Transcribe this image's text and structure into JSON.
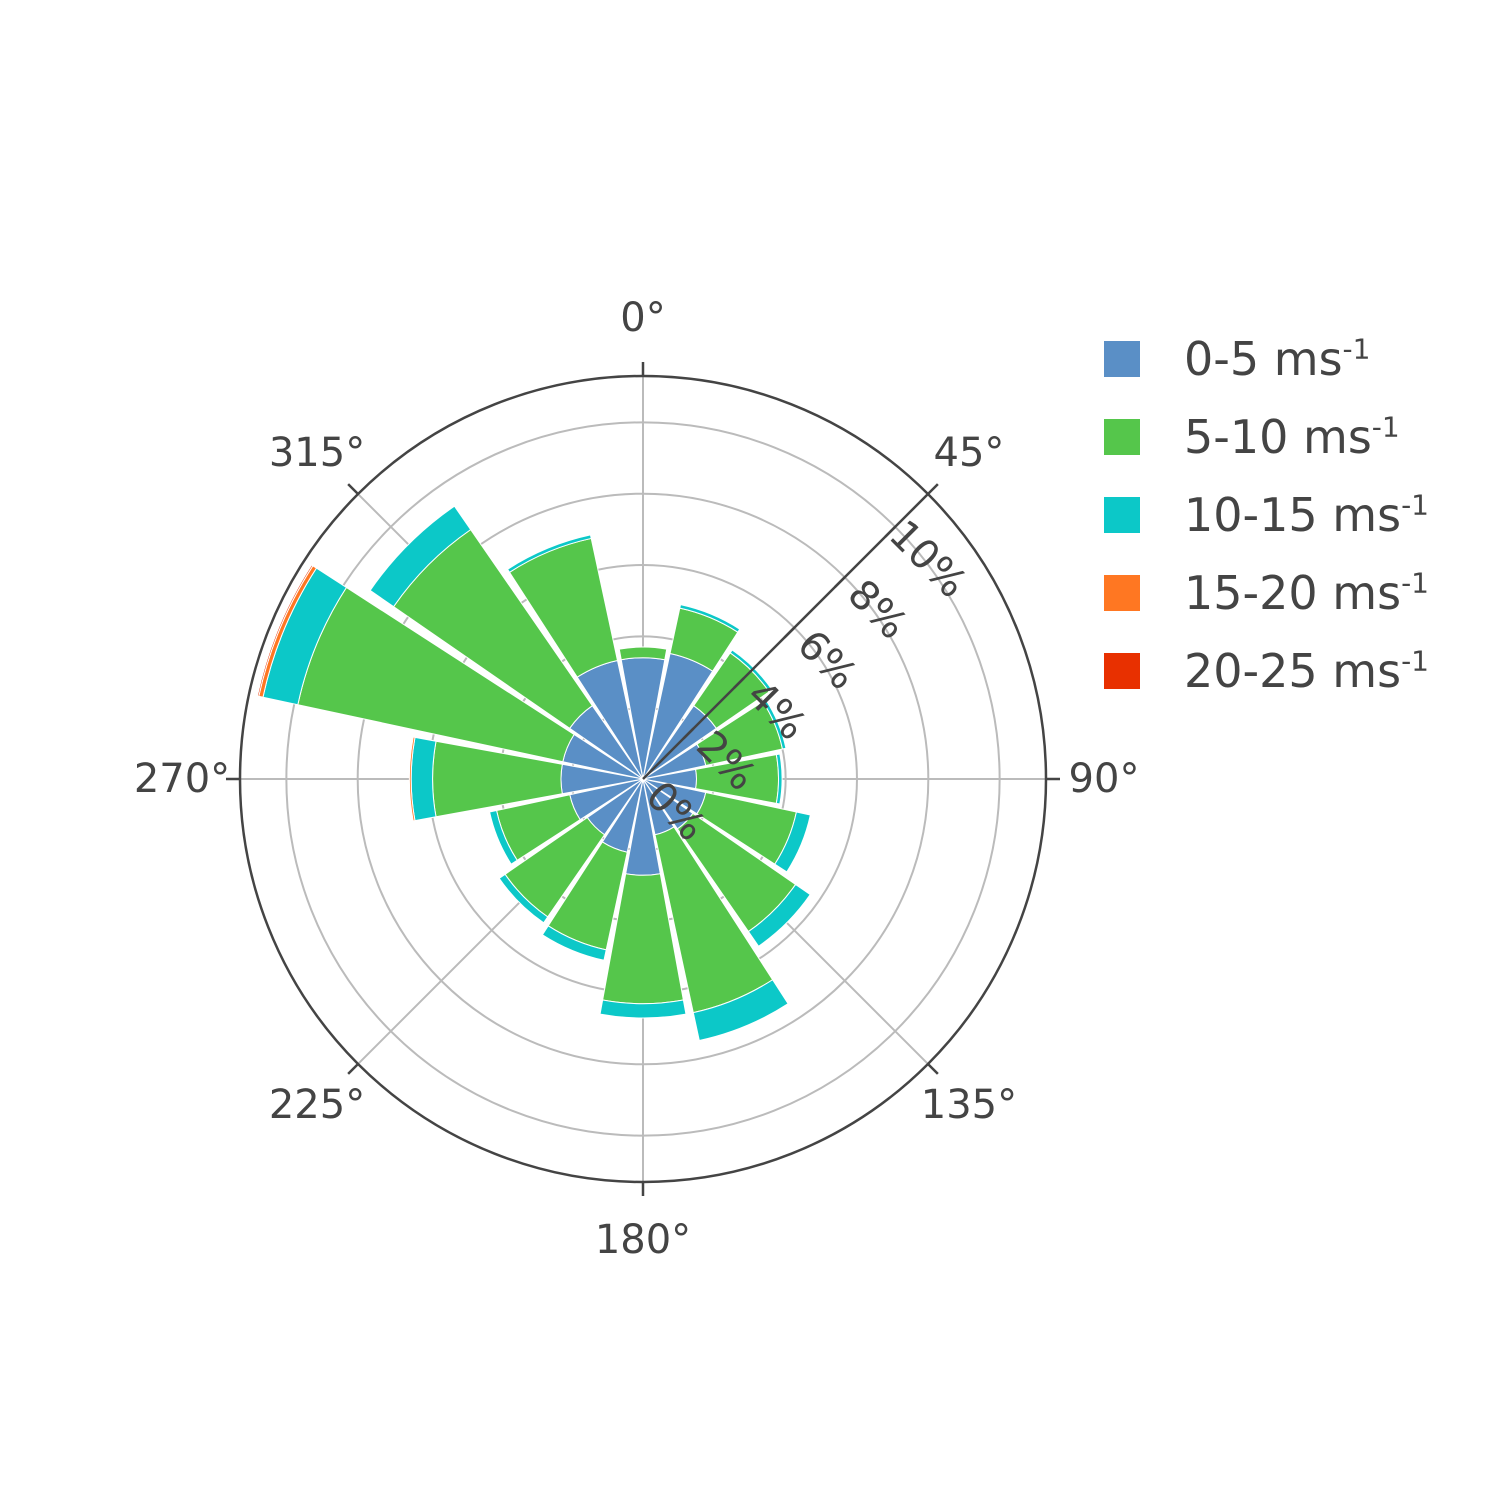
{
  "chart_data": {
    "type": "barpolar",
    "angular_axis": {
      "direction": "clockwise",
      "rotation": "north",
      "tick_labels": [
        "0°",
        "45°",
        "90°",
        "135°",
        "180°",
        "225°",
        "270°",
        "315°"
      ]
    },
    "radial_axis": {
      "range": [
        0,
        11.3
      ],
      "tick_values": [
        0,
        2,
        4,
        6,
        8,
        10
      ],
      "tick_labels": [
        "0%",
        "2%",
        "4%",
        "6%",
        "8%",
        "10%"
      ],
      "angle_deg": 45
    },
    "bin_width_deg": 22.5,
    "directions_deg": [
      0,
      22.5,
      45,
      67.5,
      90,
      112.5,
      135,
      157.5,
      180,
      202.5,
      225,
      247.5,
      270,
      292.5,
      315,
      337.5
    ],
    "series": [
      {
        "name": "0-5 ms",
        "superscript": "-1",
        "color": "#5a8fc6",
        "values": [
          3.4,
          3.6,
          2.5,
          1.8,
          1.5,
          1.8,
          1.7,
          1.6,
          2.7,
          2.1,
          1.9,
          2.1,
          2.3,
          2.3,
          2.5,
          3.4
        ]
      },
      {
        "name": "5-10 ms",
        "superscript": "-1",
        "color": "#55c64b",
        "values": [
          0.3,
          1.3,
          1.8,
          2.2,
          2.3,
          2.6,
          3.5,
          5.1,
          3.6,
          2.8,
          2.8,
          2.1,
          3.6,
          7.6,
          6.0,
          3.5
        ]
      },
      {
        "name": "10-15 ms",
        "superscript": "-1",
        "color": "#0cc8c8",
        "values": [
          0,
          0.1,
          0.1,
          0.1,
          0.1,
          0.4,
          0.5,
          0.8,
          0.4,
          0.3,
          0.2,
          0.2,
          0.6,
          1.0,
          0.8,
          0.1
        ]
      },
      {
        "name": "15-20 ms",
        "superscript": "-1",
        "color": "#ff7722",
        "values": [
          0,
          0,
          0,
          0,
          0,
          0,
          0,
          0,
          0,
          0,
          0,
          0,
          0.05,
          0.12,
          0,
          0
        ]
      },
      {
        "name": "20-25 ms",
        "superscript": "-1",
        "color": "#e83000",
        "values": [
          0,
          0,
          0,
          0,
          0,
          0,
          0,
          0,
          0,
          0,
          0,
          0,
          0,
          0.04,
          0,
          0
        ]
      }
    ],
    "legend": "right"
  }
}
